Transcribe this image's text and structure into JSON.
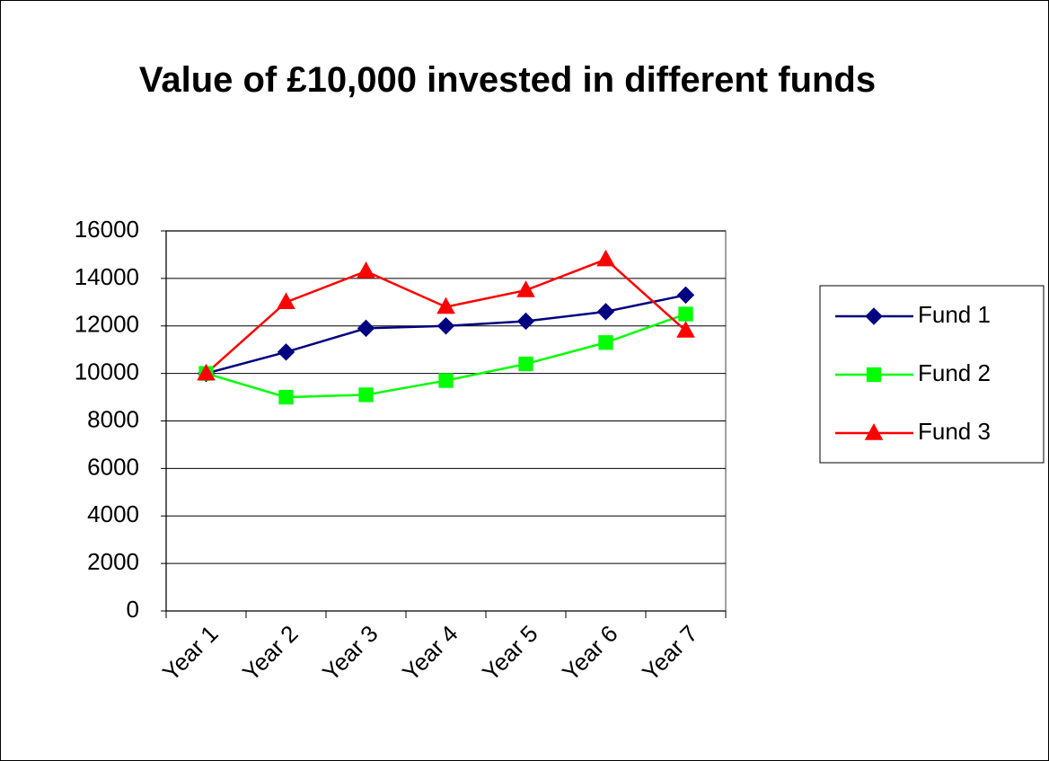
{
  "chart_data": {
    "type": "line",
    "title": "Value of £10,000 invested in different funds",
    "categories": [
      "Year 1",
      "Year 2",
      "Year 3",
      "Year 4",
      "Year 5",
      "Year 6",
      "Year 7"
    ],
    "series": [
      {
        "name": "Fund 1",
        "color": "#000080",
        "marker": "diamond",
        "values": [
          10000,
          10900,
          11900,
          12000,
          12200,
          12600,
          13300
        ]
      },
      {
        "name": "Fund 2",
        "color": "#00ff00",
        "marker": "square",
        "values": [
          10000,
          9000,
          9100,
          9700,
          10400,
          11300,
          12500
        ]
      },
      {
        "name": "Fund 3",
        "color": "#ff0000",
        "marker": "triangle",
        "values": [
          10000,
          13000,
          14300,
          12800,
          13500,
          14800,
          11800
        ]
      }
    ],
    "ylim": [
      0,
      16000
    ],
    "yticks": [
      0,
      2000,
      4000,
      6000,
      8000,
      10000,
      12000,
      14000,
      16000
    ],
    "grid": true,
    "legend": "right"
  }
}
